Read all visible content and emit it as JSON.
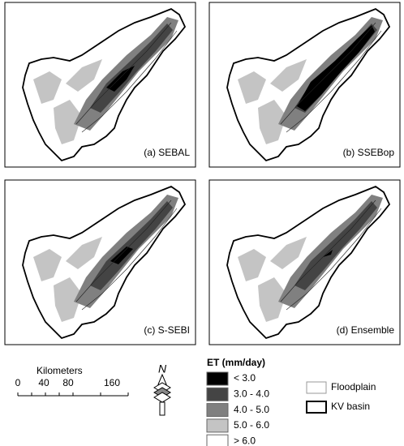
{
  "panels": [
    {
      "label": "(a) SEBAL"
    },
    {
      "label": "(b) SSEBop"
    },
    {
      "label": "(c) S-SEBI"
    },
    {
      "label": "(d) Ensemble"
    }
  ],
  "scale_bar": {
    "title": "Kilometers",
    "ticks": [
      "0",
      "40",
      "80",
      "160"
    ]
  },
  "north_arrow": {
    "label": "N"
  },
  "et_legend": {
    "title": "ET (mm/day)",
    "items": [
      {
        "label": "< 3.0",
        "color": "#000000"
      },
      {
        "label": "3.0 - 4.0",
        "color": "#444444"
      },
      {
        "label": "4.0 - 5.0",
        "color": "#808080"
      },
      {
        "label": "5.0 - 6.0",
        "color": "#c4c4c4"
      },
      {
        "label": "> 6.0",
        "color": "#ffffff"
      }
    ]
  },
  "boundary_legend": {
    "items": [
      {
        "label": "Floodplain"
      },
      {
        "label": "KV basin"
      }
    ]
  }
}
